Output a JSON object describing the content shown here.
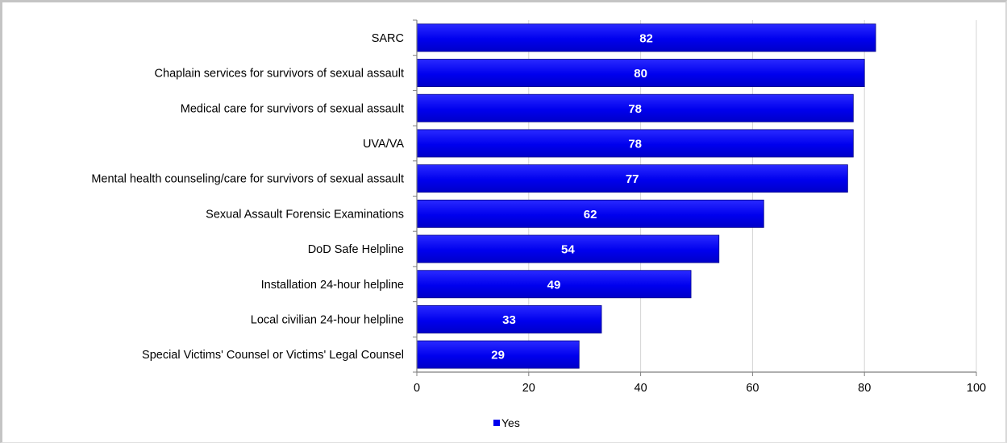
{
  "chart_data": {
    "type": "bar",
    "orientation": "horizontal",
    "categories": [
      "SARC",
      "Chaplain services for survivors of sexual assault",
      "Medical care for survivors of sexual assault",
      "UVA/VA",
      "Mental health counseling/care for survivors of sexual assault",
      "Sexual Assault Forensic Examinations",
      "DoD Safe Helpline",
      "Installation 24-hour helpline",
      "Local civilian 24-hour helpline",
      "Special Victims' Counsel or Victims' Legal Counsel"
    ],
    "series": [
      {
        "name": "Yes",
        "color": "#0000ee",
        "values": [
          82,
          80,
          78,
          78,
          77,
          62,
          54,
          49,
          33,
          29
        ]
      }
    ],
    "xlim": [
      0,
      100
    ],
    "xticks": [
      0,
      20,
      40,
      60,
      80,
      100
    ],
    "grid": true,
    "data_labels": true,
    "legend_position": "bottom"
  }
}
